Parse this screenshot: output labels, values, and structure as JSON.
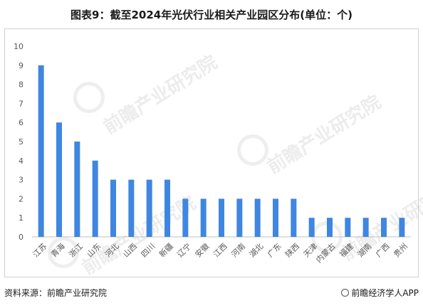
{
  "title": "图表9：截至2024年光伏行业相关产业园区分布(单位：个)",
  "footer": {
    "source": "资料来源：前瞻产业研究院",
    "brand": "前瞻经济学人APP"
  },
  "watermark": {
    "text": "前瞻产业研究院"
  },
  "colors": {
    "bar": "#3f86e0",
    "axis": "#bfbfbf",
    "text": "#595959"
  },
  "chart_data": {
    "type": "bar",
    "title": "图表9：截至2024年光伏行业相关产业园区分布(单位：个)",
    "xlabel": "",
    "ylabel": "",
    "ylim": [
      0,
      10
    ],
    "yticks": [
      0,
      1,
      2,
      3,
      4,
      5,
      6,
      7,
      8,
      9,
      10
    ],
    "grid": false,
    "legend": "none",
    "categories": [
      "江苏",
      "青海",
      "浙江",
      "山东",
      "河北",
      "山西",
      "四川",
      "新疆",
      "辽宁",
      "安徽",
      "江西",
      "河南",
      "湖北",
      "广东",
      "陕西",
      "天津",
      "内蒙古",
      "福建",
      "湖南",
      "广西",
      "贵州"
    ],
    "values": [
      9,
      6,
      5,
      4,
      3,
      3,
      3,
      3,
      2,
      2,
      2,
      2,
      2,
      2,
      2,
      1,
      1,
      1,
      1,
      1,
      1
    ]
  }
}
